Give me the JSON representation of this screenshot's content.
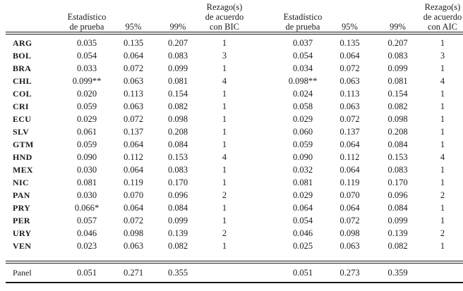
{
  "table": {
    "column_headers": [
      "",
      "Estadístico\nde prueba",
      "95%",
      "99%",
      "Rezago(s)\nde acuerdo\ncon BIC",
      "",
      "Estadístico\nde prueba",
      "95%",
      "99%",
      "Rezago(s)\nde acuerdo\ncon AIC"
    ],
    "rows": [
      {
        "country": "ARG",
        "values": [
          "0.035",
          "0.135",
          "0.207",
          "1",
          "0.037",
          "0.135",
          "0.207",
          "1"
        ]
      },
      {
        "country": "BOL",
        "values": [
          "0.054",
          "0.064",
          "0.083",
          "3",
          "0.054",
          "0.064",
          "0.083",
          "3"
        ]
      },
      {
        "country": "BRA",
        "values": [
          "0.033",
          "0.072",
          "0.099",
          "1",
          "0.034",
          "0.072",
          "0.099",
          "1"
        ]
      },
      {
        "country": "CHL",
        "values": [
          "0.099**",
          "0.063",
          "0.081",
          "4",
          "0.098**",
          "0.063",
          "0.081",
          "4"
        ]
      },
      {
        "country": "COL",
        "values": [
          "0.020",
          "0.113",
          "0.154",
          "1",
          "0.024",
          "0.113",
          "0.154",
          "1"
        ]
      },
      {
        "country": "CRI",
        "values": [
          "0.059",
          "0.063",
          "0.082",
          "1",
          "0.058",
          "0.063",
          "0.082",
          "1"
        ]
      },
      {
        "country": "ECU",
        "values": [
          "0.029",
          "0.072",
          "0.098",
          "1",
          "0.029",
          "0.072",
          "0.098",
          "1"
        ]
      },
      {
        "country": "SLV",
        "values": [
          "0.061",
          "0.137",
          "0.208",
          "1",
          "0.060",
          "0.137",
          "0.208",
          "1"
        ]
      },
      {
        "country": "GTM",
        "values": [
          "0.059",
          "0.064",
          "0.084",
          "1",
          "0.059",
          "0.064",
          "0.084",
          "1"
        ]
      },
      {
        "country": "HND",
        "values": [
          "0.090",
          "0.112",
          "0.153",
          "4",
          "0.090",
          "0.112",
          "0.153",
          "4"
        ]
      },
      {
        "country": "MEX",
        "values": [
          "0.030",
          "0.064",
          "0.083",
          "1",
          "0.032",
          "0.064",
          "0.083",
          "1"
        ]
      },
      {
        "country": "NIC",
        "values": [
          "0.081",
          "0.119",
          "0.170",
          "1",
          "0.081",
          "0.119",
          "0.170",
          "1"
        ]
      },
      {
        "country": "PAN",
        "values": [
          "0.030",
          "0.070",
          "0.096",
          "2",
          "0.029",
          "0.070",
          "0.096",
          "2"
        ]
      },
      {
        "country": "PRY",
        "values": [
          "0.066*",
          "0.064",
          "0.084",
          "1",
          "0.064",
          "0.064",
          "0.084",
          "1"
        ]
      },
      {
        "country": "PER",
        "values": [
          "0.057",
          "0.072",
          "0.099",
          "1",
          "0.054",
          "0.072",
          "0.099",
          "1"
        ]
      },
      {
        "country": "URY",
        "values": [
          "0.046",
          "0.098",
          "0.139",
          "2",
          "0.046",
          "0.098",
          "0.139",
          "2"
        ]
      },
      {
        "country": "VEN",
        "values": [
          "0.023",
          "0.063",
          "0.082",
          "1",
          "0.025",
          "0.063",
          "0.082",
          "1"
        ]
      }
    ],
    "panel": {
      "label": "Panel",
      "values": [
        "0.051",
        "0.271",
        "0.355",
        "",
        "0.051",
        "0.273",
        "0.359",
        ""
      ]
    }
  },
  "colors": {
    "text": "#1b1b1b",
    "rule": "#1a1a1a",
    "background": "#ffffff"
  }
}
